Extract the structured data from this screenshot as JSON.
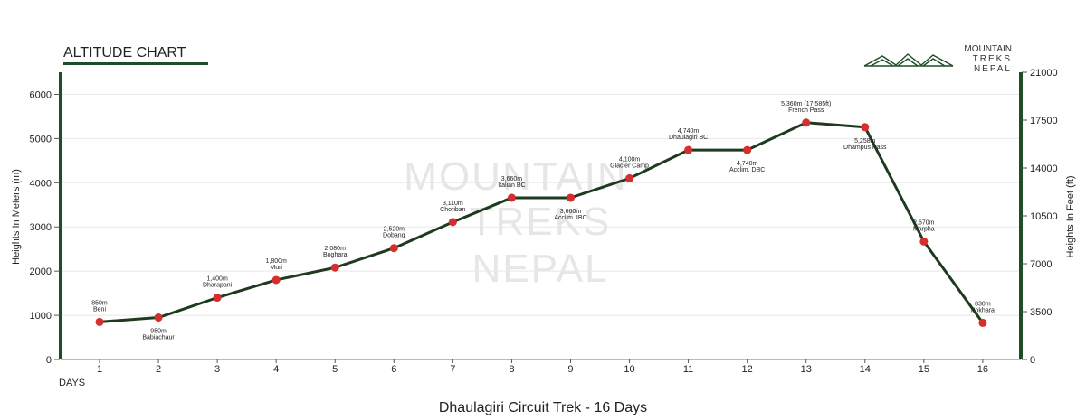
{
  "chart_data": {
    "type": "line",
    "title": "ALTITUDE CHART",
    "subtitle": "Dhaulagiri Circuit Trek - 16 Days",
    "xlabel": "DAYS",
    "ylabel": "Heights In Meters (m)",
    "y2label": "Heights In Feet (ft)",
    "ylim": [
      0,
      6500
    ],
    "y_ticks": [
      0,
      1000,
      2000,
      3000,
      4000,
      5000,
      6000
    ],
    "y2_ticks": [
      0,
      3500,
      7000,
      10500,
      14000,
      17500,
      21000
    ],
    "y2lim": [
      0,
      21000
    ],
    "grid": true,
    "x": [
      1,
      2,
      3,
      4,
      5,
      6,
      7,
      8,
      9,
      10,
      11,
      12,
      13,
      14,
      15,
      16
    ],
    "series": [
      {
        "values": [
          850,
          950,
          1400,
          1800,
          2080,
          2520,
          3110,
          3660,
          3660,
          4100,
          4740,
          4740,
          5360,
          5258,
          2670,
          830
        ]
      }
    ],
    "point_labels": [
      {
        "alt": "850m",
        "place": "Beni",
        "pos": "above"
      },
      {
        "alt": "950m",
        "place": "Babiachaur",
        "pos": "below"
      },
      {
        "alt": "1,400m",
        "place": "Dharapani",
        "pos": "above"
      },
      {
        "alt": "1,800m",
        "place": "Muri",
        "pos": "above"
      },
      {
        "alt": "2,080m",
        "place": "Boghara",
        "pos": "above"
      },
      {
        "alt": "2,520m",
        "place": "Dobang",
        "pos": "above"
      },
      {
        "alt": "3,110m",
        "place": "Choriban",
        "pos": "above"
      },
      {
        "alt": "3,660m",
        "place": "Italian BC",
        "pos": "above"
      },
      {
        "alt": "3,660m",
        "place": "Acclim. IBC",
        "pos": "below"
      },
      {
        "alt": "4,100m",
        "place": "Glacier Camp",
        "pos": "above"
      },
      {
        "alt": "4,740m",
        "place": "Dhaulagiri BC",
        "pos": "above"
      },
      {
        "alt": "4,740m",
        "place": "Acclim. DBC",
        "pos": "below"
      },
      {
        "alt": "5,360m (17,585ft)",
        "place": "French Pass",
        "pos": "above"
      },
      {
        "alt": "5,258m",
        "place": "Dhampus Pass",
        "pos": "below"
      },
      {
        "alt": "2,670m",
        "place": "Marpha",
        "pos": "above"
      },
      {
        "alt": "830m",
        "place": "Pokhara",
        "pos": "above"
      }
    ],
    "watermark": [
      "MOUNTAIN",
      "TREKS",
      "NEPAL"
    ],
    "colors": {
      "line": "#1e3b20",
      "point": "#d62d2d",
      "accent": "#1e4d26",
      "grid": "#e8e8e8"
    }
  },
  "logo": {
    "line1": "MOUNTAIN",
    "line2": "TREKS",
    "line3": "NEPAL"
  }
}
